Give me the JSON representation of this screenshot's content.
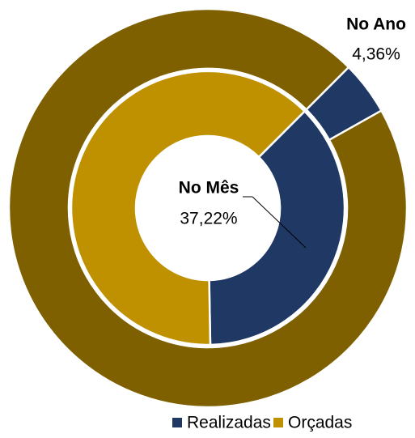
{
  "chart_data": {
    "type": "donut",
    "categories": [
      "Realizadas",
      "Orçadas"
    ],
    "rings": [
      {
        "name": "No Ano",
        "values": [
          4.36,
          95.64
        ],
        "value_labels": [
          "4,36%",
          null
        ],
        "colors": [
          "#203864",
          "#7f6000"
        ]
      },
      {
        "name": "No Mês",
        "values": [
          37.22,
          62.78
        ],
        "value_labels": [
          "37,22%",
          null
        ],
        "colors": [
          "#203864",
          "#bf9000"
        ]
      }
    ],
    "legend": "bottom"
  }
}
